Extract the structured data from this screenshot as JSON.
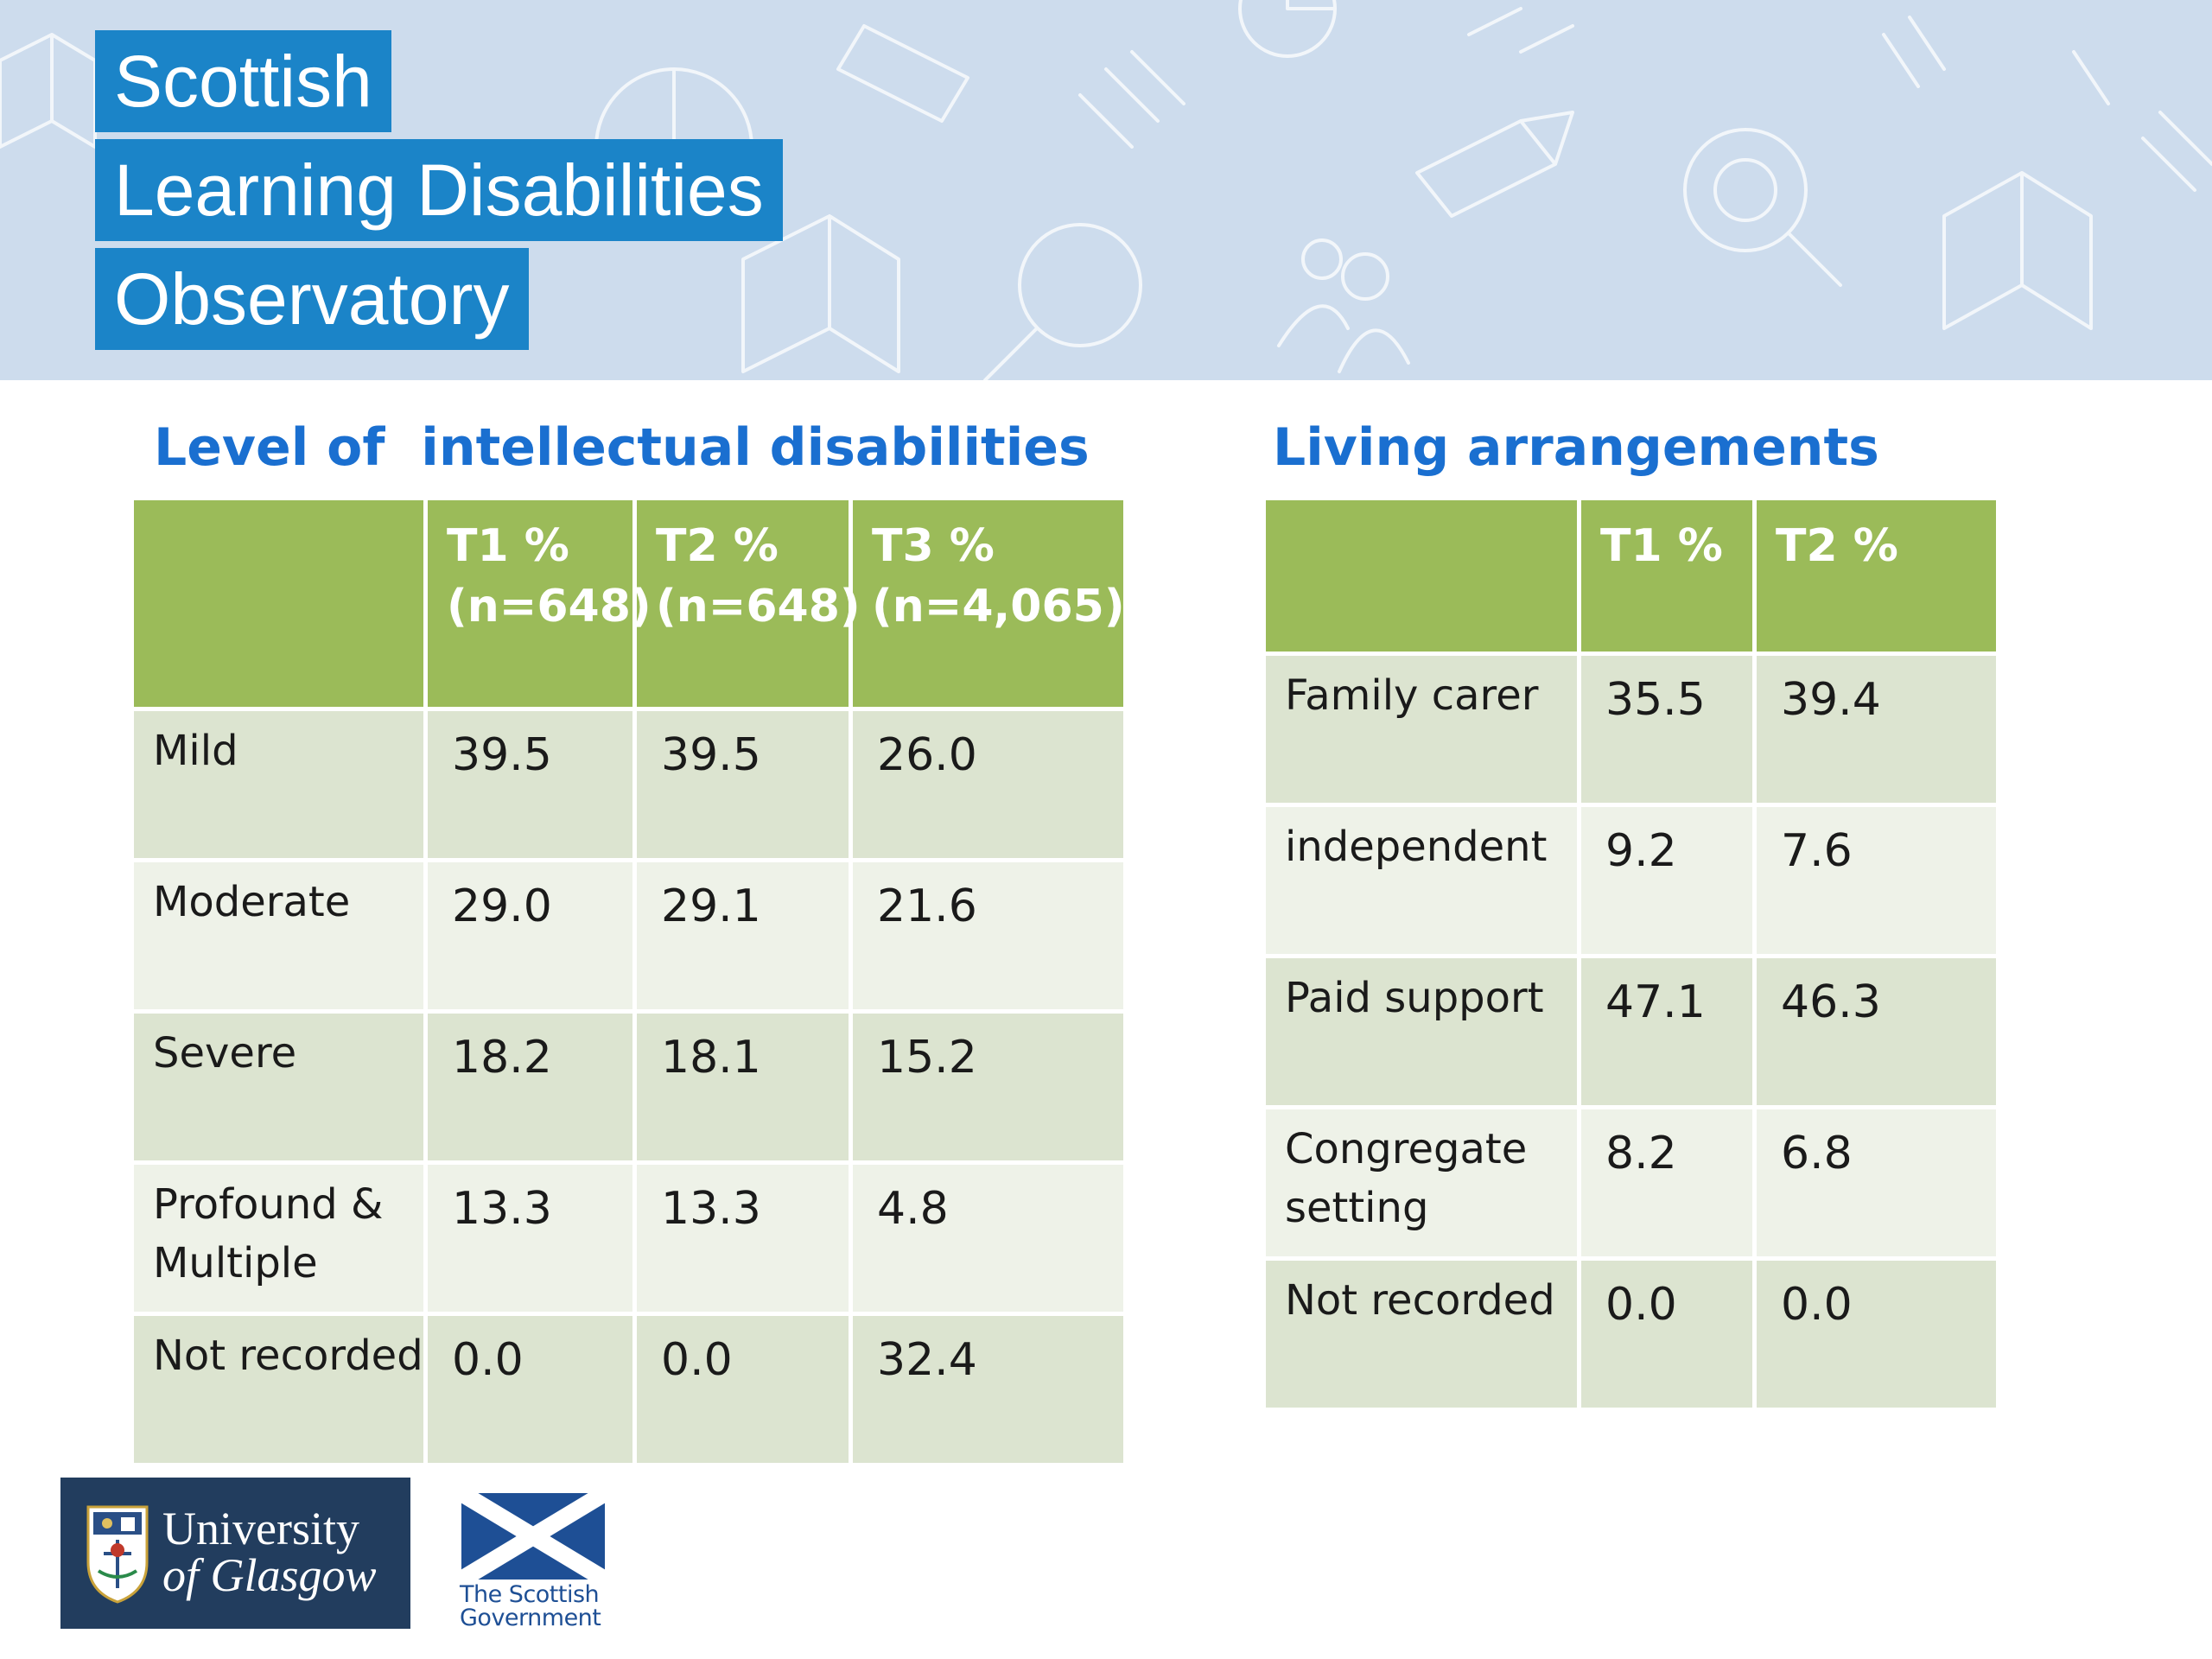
{
  "header": {
    "title_lines": [
      "Scottish",
      "Learning Disabilities",
      "Observatory"
    ]
  },
  "level_table": {
    "heading": "Level of  intellectual disabilities",
    "columns": [
      {
        "label": "T1 %",
        "sub": "(n=648)"
      },
      {
        "label": "T2 %",
        "sub": "(n=648)"
      },
      {
        "label": "T3 %",
        "sub": "(n=4,065)"
      }
    ],
    "rows": [
      {
        "label": "Mild",
        "values": [
          "39.5",
          "39.5",
          "26.0"
        ]
      },
      {
        "label": "Moderate",
        "values": [
          "29.0",
          "29.1",
          "21.6"
        ]
      },
      {
        "label": "Severe",
        "values": [
          "18.2",
          "18.1",
          "15.2"
        ]
      },
      {
        "label": "Profound & Multiple",
        "values": [
          "13.3",
          "13.3",
          "4.8"
        ]
      },
      {
        "label": "Not recorded",
        "values": [
          "0.0",
          "0.0",
          "32.4"
        ]
      }
    ]
  },
  "living_table": {
    "heading": "Living arrangements",
    "columns": [
      {
        "label": "T1 %"
      },
      {
        "label": "T2 %"
      }
    ],
    "rows": [
      {
        "label": "Family carer",
        "values": [
          "35.5",
          "39.4"
        ]
      },
      {
        "label": "independent",
        "values": [
          "9.2",
          "7.6"
        ]
      },
      {
        "label": "Paid support",
        "values": [
          "47.1",
          "46.3"
        ]
      },
      {
        "label": "Congregate setting",
        "values": [
          "8.2",
          "6.8"
        ]
      },
      {
        "label": "Not recorded",
        "values": [
          "0.0",
          "0.0"
        ]
      }
    ]
  },
  "logos": {
    "glasgow": {
      "line1": "University",
      "line2": "of Glasgow",
      "icon": "university-crest-icon"
    },
    "scotgov": {
      "line1": "The Scottish",
      "line2": "Government",
      "icon": "saltire-flag-icon"
    }
  },
  "colors": {
    "banner_bg": "#cddced",
    "title_bg": "#1b84c8",
    "heading": "#1a6fd0",
    "table_header": "#9bbb59",
    "row_odd": "#dce4d0",
    "row_even": "#eef2e8",
    "glasgow_bg": "#223d5e",
    "scotgov_blue": "#1e4f95"
  }
}
